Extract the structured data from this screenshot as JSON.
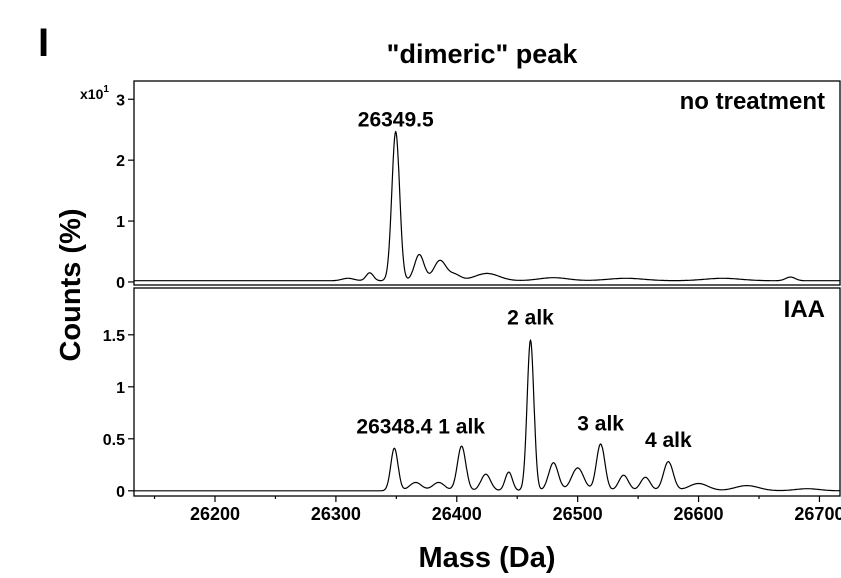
{
  "panel_letter": "I",
  "chart_data": {
    "type": "line",
    "title": "\"dimeric\" peak",
    "xlabel": "Mass (Da)",
    "ylabel": "Counts (%)",
    "xlim": [
      26133,
      26717
    ],
    "xticks": [
      26200,
      26300,
      26400,
      26500,
      26600,
      26700
    ],
    "xtick_labels": [
      "26200",
      "26300",
      "26400",
      "26500",
      "26600",
      "26700"
    ],
    "grid": false,
    "panels": [
      {
        "label": "no treatment",
        "scale_prefix": "x10",
        "scale_exponent": "1",
        "ylim": [
          -0.05,
          3.3
        ],
        "yticks": [
          0,
          1,
          2,
          3
        ],
        "ytick_labels": [
          "0",
          "1",
          "2",
          "3"
        ],
        "baseline": 0.02,
        "peaks": [
          {
            "x": 26310,
            "h": 0.04,
            "w": 5
          },
          {
            "x": 26328,
            "h": 0.13,
            "w": 3
          },
          {
            "x": 26349.5,
            "h": 2.45,
            "w": 3.2
          },
          {
            "x": 26369,
            "h": 0.43,
            "w": 4
          },
          {
            "x": 26386,
            "h": 0.33,
            "w": 5
          },
          {
            "x": 26398,
            "h": 0.1,
            "w": 5
          },
          {
            "x": 26425,
            "h": 0.12,
            "w": 10
          },
          {
            "x": 26480,
            "h": 0.05,
            "w": 12
          },
          {
            "x": 26540,
            "h": 0.04,
            "w": 15
          },
          {
            "x": 26620,
            "h": 0.04,
            "w": 15
          },
          {
            "x": 26676,
            "h": 0.06,
            "w": 4
          }
        ],
        "annotations": [
          {
            "text": "26349.5",
            "x": 26349.5,
            "y": 2.55
          }
        ]
      },
      {
        "label": "IAA",
        "scale_prefix": "",
        "scale_exponent": "",
        "ylim": [
          -0.05,
          1.95
        ],
        "yticks": [
          0,
          0.5,
          1,
          1.5
        ],
        "ytick_labels": [
          "0",
          "0.5",
          "1",
          "1.5"
        ],
        "baseline": 0.0,
        "peaks": [
          {
            "x": 26348.4,
            "h": 0.41,
            "w": 3
          },
          {
            "x": 26366,
            "h": 0.08,
            "w": 5
          },
          {
            "x": 26385,
            "h": 0.08,
            "w": 5
          },
          {
            "x": 26404,
            "h": 0.43,
            "w": 3.5
          },
          {
            "x": 26424,
            "h": 0.16,
            "w": 4
          },
          {
            "x": 26443,
            "h": 0.18,
            "w": 3
          },
          {
            "x": 26461,
            "h": 1.45,
            "w": 2.8
          },
          {
            "x": 26480,
            "h": 0.27,
            "w": 4
          },
          {
            "x": 26500,
            "h": 0.22,
            "w": 5
          },
          {
            "x": 26519,
            "h": 0.45,
            "w": 3.5
          },
          {
            "x": 26538,
            "h": 0.15,
            "w": 4
          },
          {
            "x": 26556,
            "h": 0.13,
            "w": 4
          },
          {
            "x": 26575,
            "h": 0.28,
            "w": 4
          },
          {
            "x": 26600,
            "h": 0.07,
            "w": 8
          },
          {
            "x": 26640,
            "h": 0.05,
            "w": 10
          },
          {
            "x": 26690,
            "h": 0.02,
            "w": 10
          }
        ],
        "annotations": [
          {
            "text": "26348.4",
            "x": 26348.4,
            "y": 0.55
          },
          {
            "text": "1 alk",
            "x": 26404,
            "y": 0.55
          },
          {
            "text": "2 alk",
            "x": 26461,
            "y": 1.6
          },
          {
            "text": "3 alk",
            "x": 26519,
            "y": 0.58
          },
          {
            "text": "4 alk",
            "x": 26575,
            "y": 0.42
          }
        ]
      }
    ]
  }
}
